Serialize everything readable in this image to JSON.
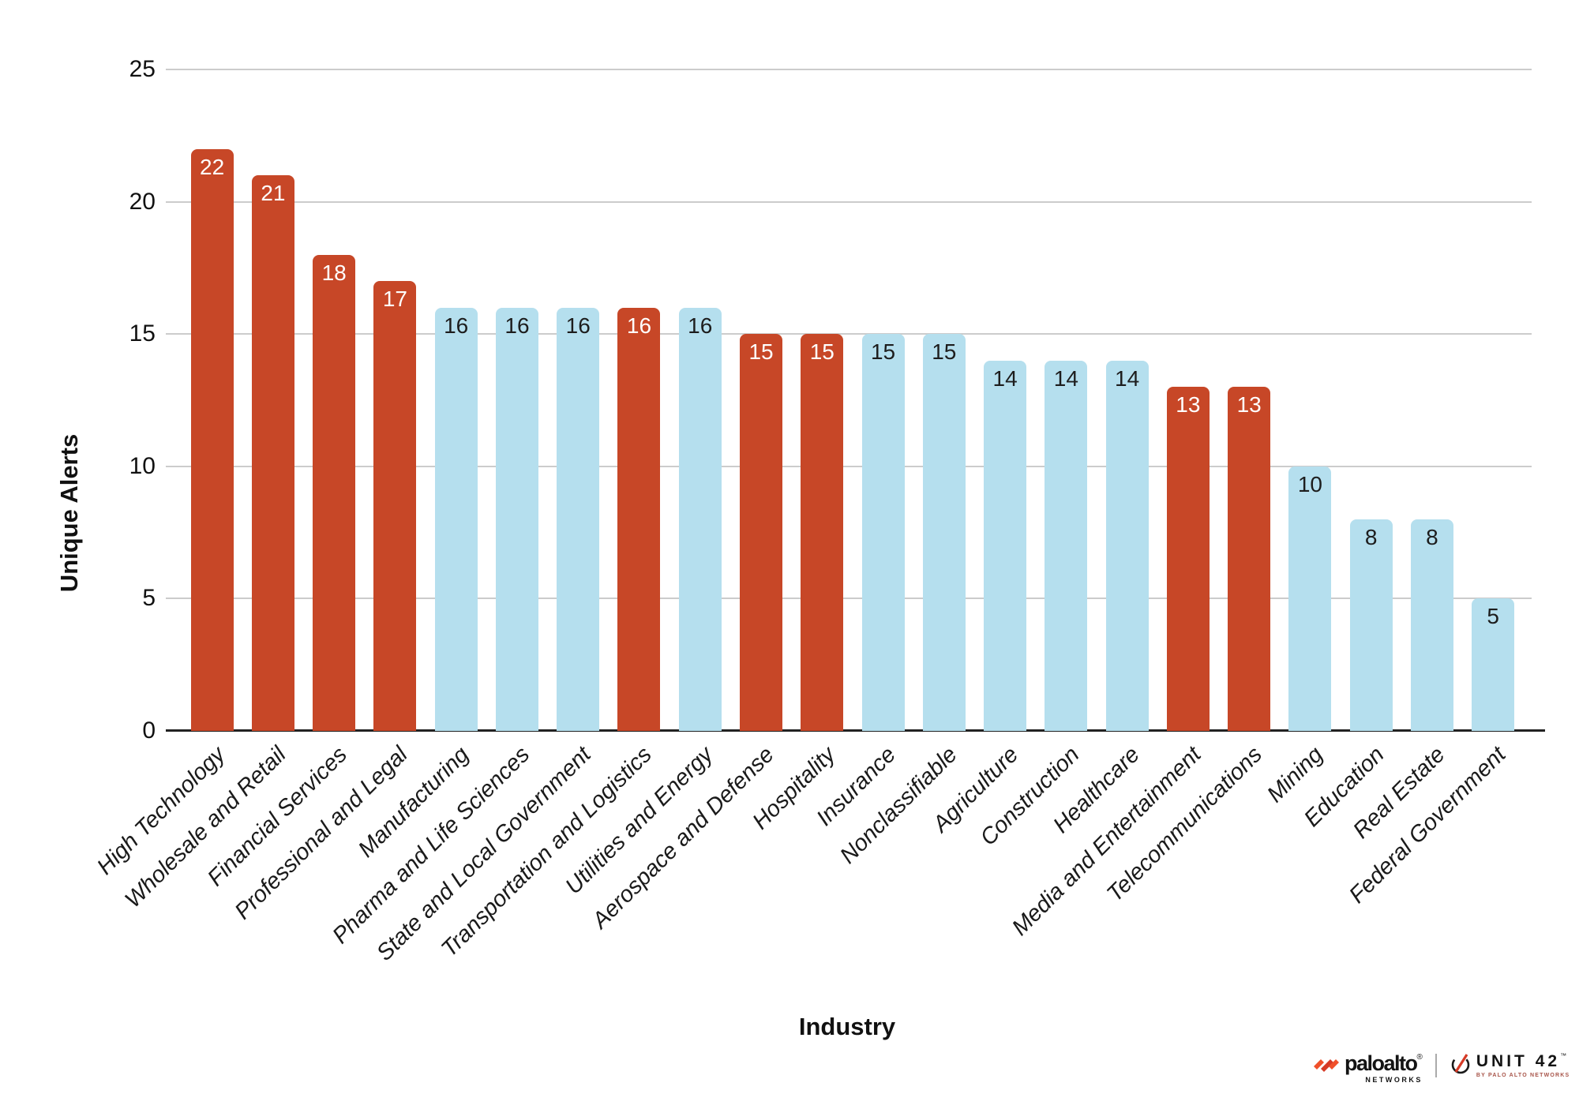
{
  "chart_data": {
    "type": "bar",
    "title": "",
    "xlabel": "Industry",
    "ylabel": "Unique Alerts",
    "ylim": [
      0,
      25
    ],
    "yticks": [
      25,
      20,
      15,
      10,
      5,
      0
    ],
    "grid": true,
    "legend": "none",
    "bars": [
      {
        "label": "High Technology",
        "value": 22,
        "color": "red"
      },
      {
        "label": "Wholesale and Retail",
        "value": 21,
        "color": "red"
      },
      {
        "label": "Financial Services",
        "value": 18,
        "color": "red"
      },
      {
        "label": "Professional and Legal",
        "value": 17,
        "color": "red"
      },
      {
        "label": "Manufacturing",
        "value": 16,
        "color": "blue"
      },
      {
        "label": "Pharma and Life Sciences",
        "value": 16,
        "color": "blue"
      },
      {
        "label": "State and Local Government",
        "value": 16,
        "color": "blue"
      },
      {
        "label": "Transportation and Logistics",
        "value": 16,
        "color": "red"
      },
      {
        "label": "Utilities and Energy",
        "value": 16,
        "color": "blue"
      },
      {
        "label": "Aerospace and Defense",
        "value": 15,
        "color": "red"
      },
      {
        "label": "Hospitality",
        "value": 15,
        "color": "red"
      },
      {
        "label": "Insurance",
        "value": 15,
        "color": "blue"
      },
      {
        "label": "Nonclassifiable",
        "value": 15,
        "color": "blue"
      },
      {
        "label": "Agriculture",
        "value": 14,
        "color": "blue"
      },
      {
        "label": "Construction",
        "value": 14,
        "color": "blue"
      },
      {
        "label": "Healthcare",
        "value": 14,
        "color": "blue"
      },
      {
        "label": "Media and Entertainment",
        "value": 13,
        "color": "red"
      },
      {
        "label": "Telecommunications",
        "value": 13,
        "color": "red"
      },
      {
        "label": "Mining",
        "value": 10,
        "color": "blue"
      },
      {
        "label": "Education",
        "value": 8,
        "color": "blue"
      },
      {
        "label": "Real Estate",
        "value": 8,
        "color": "blue"
      },
      {
        "label": "Federal Government",
        "value": 5,
        "color": "blue"
      }
    ],
    "colors": {
      "red": "#c74727",
      "blue": "#b5dfee",
      "value_label_on_red": "#ffffff",
      "value_label_on_blue": "#1d1d1d",
      "gridline": "#cccccc",
      "axis_line": "#222222",
      "logo_orange": "#f0502a",
      "unit42_red": "#d63a26"
    }
  },
  "footer": {
    "paloalto_wordmark": "paloalto",
    "paloalto_reg": "®",
    "paloalto_sub": "NETWORKS",
    "unit42_wordmark": "UNIT 42",
    "unit42_tm": "™",
    "unit42_sub": "BY PALO ALTO NETWORKS"
  }
}
